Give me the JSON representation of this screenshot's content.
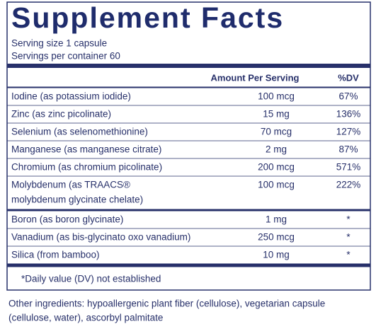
{
  "header": {
    "title": "Supplement Facts",
    "serving_size": "Serving size  1 capsule",
    "servings_per_container": "Servings per container  60"
  },
  "table": {
    "columns": [
      "Amount Per Serving",
      "%DV"
    ],
    "groups": [
      [
        {
          "name": [
            "Iodine (as potassium iodide)"
          ],
          "amount": "100 mcg",
          "dv": "67%"
        },
        {
          "name": [
            "Zinc (as zinc picolinate)"
          ],
          "amount": "15 mg",
          "dv": "136%"
        },
        {
          "name": [
            "Selenium (as selenomethionine)"
          ],
          "amount": "70 mcg",
          "dv": "127%"
        },
        {
          "name": [
            "Manganese (as manganese citrate)"
          ],
          "amount": "2 mg",
          "dv": "87%"
        },
        {
          "name": [
            "Chromium (as chromium picolinate)"
          ],
          "amount": "200 mcg",
          "dv": "571%"
        },
        {
          "name": [
            "Molybdenum (as TRAACS®",
            "molybdenum glycinate chelate)"
          ],
          "amount": "100 mcg",
          "dv": "222%"
        }
      ],
      [
        {
          "name": [
            "Boron (as boron glycinate)"
          ],
          "amount": "1 mg",
          "dv": "*"
        },
        {
          "name": [
            "Vanadium (as bis-glycinato oxo vanadium)"
          ],
          "amount": "250 mcg",
          "dv": "*"
        },
        {
          "name": [
            "Silica (from bamboo)"
          ],
          "amount": "10 mg",
          "dv": "*"
        }
      ]
    ],
    "footnote": "*Daily value (DV) not established"
  },
  "other_ingredients": [
    "Other ingredients: hypoallergenic plant fiber (cellulose), vegetarian capsule",
    "(cellulose, water), ascorbyl palmitate"
  ]
}
